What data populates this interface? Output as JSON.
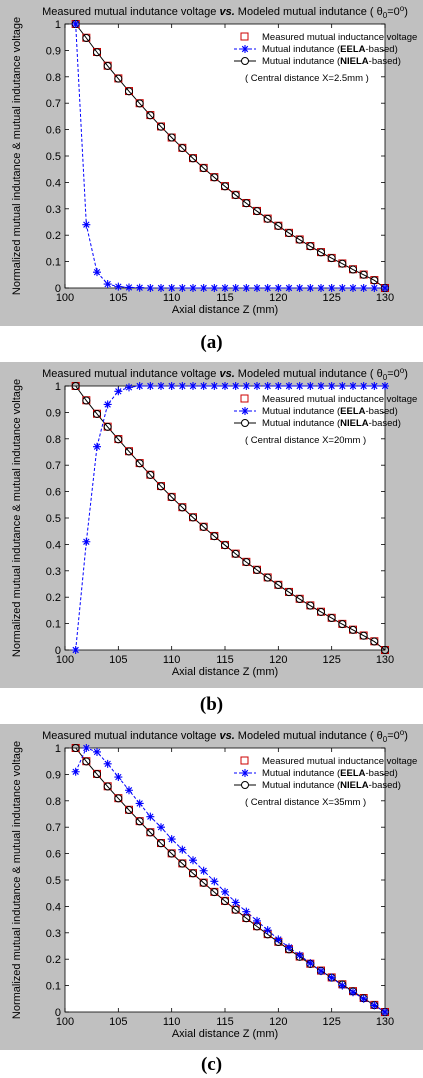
{
  "chart_data": [
    {
      "type": "line",
      "title": {
        "pre": "Measured mutual indutance voltage",
        "vs": "vs.",
        "post": "Modeled mutual indutance",
        "theta": "θ",
        "theta_sub": "0",
        "theta_val": "=0",
        "theta_sup": "o"
      },
      "xlabel": "Axial distance  Z (mm)",
      "ylabel": "Normalized mutual indutance & mutual indutance voltage",
      "xlim": [
        100,
        130
      ],
      "ylim": [
        0,
        1
      ],
      "xticks": [
        100,
        105,
        110,
        115,
        120,
        125,
        130
      ],
      "yticks": [
        0,
        0.1,
        0.2,
        0.3,
        0.4,
        0.5,
        0.6,
        0.7,
        0.8,
        0.9,
        1
      ],
      "legend": {
        "placement": "top-right",
        "note": "( Central distance X=2.5mm )"
      },
      "x": [
        101,
        102,
        103,
        104,
        105,
        106,
        107,
        108,
        109,
        110,
        111,
        112,
        113,
        114,
        115,
        116,
        117,
        118,
        119,
        120,
        121,
        122,
        123,
        124,
        125,
        126,
        127,
        128,
        129,
        130
      ],
      "series": [
        {
          "name": "Measured mutual inductance voltage",
          "key": "measured",
          "values": [
            1.0,
            0.948,
            0.894,
            0.842,
            0.794,
            0.746,
            0.7,
            0.655,
            0.612,
            0.57,
            0.531,
            0.492,
            0.455,
            0.42,
            0.386,
            0.353,
            0.322,
            0.292,
            0.263,
            0.236,
            0.209,
            0.184,
            0.159,
            0.136,
            0.114,
            0.093,
            0.071,
            0.051,
            0.03,
            0.0
          ]
        },
        {
          "name_pre": "Mutual indutance (",
          "name_bold": "EELA",
          "name_post": "-based)",
          "key": "eela",
          "values": [
            1.0,
            0.24,
            0.06,
            0.015,
            0.005,
            0.002,
            0.001,
            0,
            0,
            0,
            0,
            0,
            0,
            0,
            0,
            0,
            0,
            0,
            0,
            0,
            0,
            0,
            0,
            0,
            0,
            0,
            0,
            0,
            0,
            0
          ]
        },
        {
          "name_pre": "Mutual indutance (",
          "name_bold": "NIELA",
          "name_post": "-based)",
          "key": "niela",
          "values": [
            1.0,
            0.947,
            0.893,
            0.841,
            0.793,
            0.745,
            0.699,
            0.654,
            0.611,
            0.57,
            0.53,
            0.491,
            0.454,
            0.419,
            0.385,
            0.352,
            0.321,
            0.291,
            0.262,
            0.235,
            0.208,
            0.183,
            0.158,
            0.135,
            0.113,
            0.092,
            0.07,
            0.05,
            0.029,
            0.0
          ]
        }
      ],
      "caption": "(a)"
    },
    {
      "type": "line",
      "title": {
        "pre": "Measured mutual indutance voltage",
        "vs": "vs.",
        "post": "Modeled mutual indutance",
        "theta": "θ",
        "theta_sub": "0",
        "theta_val": "=0",
        "theta_sup": "o"
      },
      "xlabel": "Axial distance  Z (mm)",
      "ylabel": "Normalized mutual indutance & mutual indutance voltage",
      "xlim": [
        100,
        130
      ],
      "ylim": [
        0,
        1
      ],
      "xticks": [
        100,
        105,
        110,
        115,
        120,
        125,
        130
      ],
      "yticks": [
        0,
        0.1,
        0.2,
        0.3,
        0.4,
        0.5,
        0.6,
        0.7,
        0.8,
        0.9,
        1
      ],
      "legend": {
        "placement": "top-right",
        "note": "( Central distance X=20mm )"
      },
      "x": [
        101,
        102,
        103,
        104,
        105,
        106,
        107,
        108,
        109,
        110,
        111,
        112,
        113,
        114,
        115,
        116,
        117,
        118,
        119,
        120,
        121,
        122,
        123,
        124,
        125,
        126,
        127,
        128,
        129,
        130
      ],
      "series": [
        {
          "name": "Measured mutual inductance voltage",
          "key": "measured",
          "values": [
            1.0,
            0.946,
            0.895,
            0.846,
            0.799,
            0.753,
            0.708,
            0.664,
            0.621,
            0.58,
            0.541,
            0.503,
            0.467,
            0.432,
            0.398,
            0.365,
            0.334,
            0.304,
            0.275,
            0.247,
            0.22,
            0.194,
            0.169,
            0.145,
            0.122,
            0.099,
            0.077,
            0.055,
            0.033,
            0.0
          ]
        },
        {
          "name_pre": "Mutual indutance (",
          "name_bold": "EELA",
          "name_post": "-based)",
          "key": "eela",
          "values": [
            0.0,
            0.41,
            0.77,
            0.93,
            0.98,
            0.995,
            1.0,
            1.0,
            1.0,
            1.0,
            1.0,
            1.0,
            1.0,
            1.0,
            1.0,
            1.0,
            1.0,
            1.0,
            1.0,
            1.0,
            1.0,
            1.0,
            1.0,
            1.0,
            1.0,
            1.0,
            1.0,
            1.0,
            1.0,
            1.0
          ]
        },
        {
          "name_pre": "Mutual indutance (",
          "name_bold": "NIELA",
          "name_post": "-based)",
          "key": "niela",
          "values": [
            1.0,
            0.945,
            0.894,
            0.845,
            0.798,
            0.752,
            0.707,
            0.663,
            0.62,
            0.579,
            0.54,
            0.502,
            0.466,
            0.431,
            0.397,
            0.364,
            0.333,
            0.303,
            0.274,
            0.246,
            0.219,
            0.193,
            0.168,
            0.144,
            0.121,
            0.098,
            0.076,
            0.054,
            0.032,
            0.0
          ]
        }
      ],
      "caption": "(b)"
    },
    {
      "type": "line",
      "title": {
        "pre": "Measured mutual indutance voltage",
        "vs": "vs.",
        "post": "Modeled mutual indutance",
        "theta": "θ",
        "theta_sub": "0",
        "theta_val": "=0",
        "theta_sup": "o"
      },
      "xlabel": "Axial distance  Z (mm)",
      "ylabel": "Normalized mutual indutance & mutual indutance voltage",
      "xlim": [
        100,
        130
      ],
      "ylim": [
        0,
        1
      ],
      "xticks": [
        100,
        105,
        110,
        115,
        120,
        125,
        130
      ],
      "yticks": [
        0,
        0.1,
        0.2,
        0.3,
        0.4,
        0.5,
        0.6,
        0.7,
        0.8,
        0.9,
        1
      ],
      "legend": {
        "placement": "top-right",
        "note": "( Central distance X=35mm )"
      },
      "x": [
        101,
        102,
        103,
        104,
        105,
        106,
        107,
        108,
        109,
        110,
        111,
        112,
        113,
        114,
        115,
        116,
        117,
        118,
        119,
        120,
        121,
        122,
        123,
        124,
        125,
        126,
        127,
        128,
        129,
        130
      ],
      "series": [
        {
          "name": "Measured mutual inductance voltage",
          "key": "measured",
          "values": [
            1.0,
            0.95,
            0.902,
            0.855,
            0.81,
            0.766,
            0.723,
            0.681,
            0.64,
            0.601,
            0.563,
            0.526,
            0.49,
            0.455,
            0.421,
            0.388,
            0.356,
            0.325,
            0.295,
            0.266,
            0.238,
            0.21,
            0.183,
            0.157,
            0.131,
            0.105,
            0.079,
            0.053,
            0.027,
            0.0
          ]
        },
        {
          "name_pre": "Mutual indutance (",
          "name_bold": "EELA",
          "name_post": "-based)",
          "key": "eela",
          "values": [
            0.91,
            1.0,
            0.985,
            0.94,
            0.89,
            0.84,
            0.79,
            0.74,
            0.7,
            0.655,
            0.615,
            0.575,
            0.535,
            0.495,
            0.455,
            0.415,
            0.38,
            0.345,
            0.31,
            0.275,
            0.245,
            0.215,
            0.185,
            0.155,
            0.13,
            0.1,
            0.075,
            0.05,
            0.025,
            0.0
          ]
        },
        {
          "name_pre": "Mutual indutance (",
          "name_bold": "NIELA",
          "name_post": "-based)",
          "key": "niela",
          "values": [
            1.0,
            0.949,
            0.901,
            0.854,
            0.809,
            0.765,
            0.722,
            0.68,
            0.639,
            0.6,
            0.562,
            0.525,
            0.489,
            0.454,
            0.42,
            0.387,
            0.355,
            0.324,
            0.294,
            0.265,
            0.237,
            0.209,
            0.182,
            0.156,
            0.13,
            0.104,
            0.078,
            0.052,
            0.026,
            0.0
          ]
        }
      ],
      "caption": "(c)"
    }
  ],
  "colors": {
    "frame_bg": "#c0c0c0",
    "plot_bg": "#ffffff",
    "measured": "#cc0000",
    "eela": "#0000ff",
    "niela": "#000000"
  }
}
